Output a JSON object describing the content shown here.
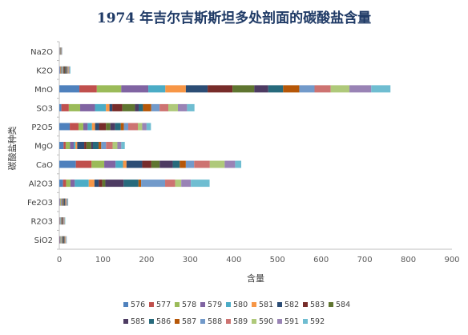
{
  "chart_data": {
    "type": "bar",
    "orientation": "horizontal",
    "stacked": true,
    "title": "1974 年吉尔吉斯斯坦多处剖面的碳酸盐含量",
    "xlabel": "含量",
    "ylabel": "碳酸盐种类",
    "xlim": [
      0,
      900
    ],
    "xticks": [
      "0",
      "100",
      "200",
      "300",
      "400",
      "500",
      "600",
      "700",
      "800",
      "900"
    ],
    "grid": false,
    "legend_position": "bottom",
    "categories": [
      "Na2O",
      "K2O",
      "MnO",
      "SO3",
      "P2O5",
      "MgO",
      "CaO",
      "Al2O3",
      "Fe2O3",
      "R2O3",
      "SiO2"
    ],
    "series": [
      {
        "name": "576",
        "color": "#4f81bd",
        "values": [
          0.4,
          1.5,
          46,
          4.8,
          24,
          9.8,
          38,
          8.5,
          1.2,
          0.8,
          1.0
        ]
      },
      {
        "name": "577",
        "color": "#c0504d",
        "values": [
          0.4,
          1.5,
          40,
          17,
          20,
          4.8,
          36,
          7,
          1.2,
          0.8,
          1.0
        ]
      },
      {
        "name": "578",
        "color": "#9bbb59",
        "values": [
          0.4,
          1.5,
          56,
          26,
          11,
          10,
          29,
          10,
          1.2,
          0.8,
          1.0
        ]
      },
      {
        "name": "579",
        "color": "#8064a2",
        "values": [
          0.4,
          1.5,
          62,
          34,
          10,
          8.5,
          26,
          10,
          1.2,
          0.8,
          1.0
        ]
      },
      {
        "name": "580",
        "color": "#4bacc6",
        "values": [
          0.4,
          1.5,
          39,
          25,
          10,
          4,
          17,
          32,
          1.2,
          0.8,
          1.0
        ]
      },
      {
        "name": "581",
        "color": "#f79646",
        "values": [
          0.4,
          1.5,
          47,
          8.2,
          7,
          4,
          8,
          13,
          1.2,
          0.8,
          1.0
        ]
      },
      {
        "name": "582",
        "color": "#2c4d75",
        "values": [
          0.4,
          1.5,
          50,
          6.4,
          9,
          16,
          36,
          10,
          1.2,
          0.8,
          1.0
        ]
      },
      {
        "name": "583",
        "color": "#772c2a",
        "values": [
          0.4,
          1.5,
          57,
          23,
          16,
          5,
          21,
          8,
          1.2,
          0.8,
          1.0
        ]
      },
      {
        "name": "584",
        "color": "#5f7530",
        "values": [
          0.4,
          1.5,
          50,
          29,
          10,
          11,
          19,
          7,
          1.2,
          0.8,
          1.0
        ]
      },
      {
        "name": "585",
        "color": "#4d3b62",
        "values": [
          0.4,
          1.5,
          32,
          8.4,
          11,
          4,
          30,
          42,
          1.2,
          0.8,
          1.0
        ]
      },
      {
        "name": "586",
        "color": "#276a7c",
        "values": [
          0.4,
          1.5,
          34,
          10,
          13,
          13,
          16,
          34,
          1.2,
          0.8,
          1.0
        ]
      },
      {
        "name": "587",
        "color": "#b65708",
        "values": [
          0.4,
          1.5,
          37,
          19,
          7,
          6,
          14,
          6,
          1.2,
          0.8,
          1.0
        ]
      },
      {
        "name": "588",
        "color": "#729aca",
        "values": [
          0.4,
          1.5,
          35,
          19,
          10,
          11,
          19,
          55,
          1.2,
          0.8,
          1.0
        ]
      },
      {
        "name": "589",
        "color": "#cd7371",
        "values": [
          0.4,
          1.5,
          37,
          20,
          22,
          15,
          36,
          23,
          1.2,
          0.8,
          1.0
        ]
      },
      {
        "name": "590",
        "color": "#afc97a",
        "values": [
          0.4,
          1.5,
          43,
          22,
          10,
          11,
          34,
          14,
          1.2,
          0.8,
          1.0
        ]
      },
      {
        "name": "591",
        "color": "#9983b5",
        "values": [
          0.4,
          1.5,
          50,
          21,
          10,
          9,
          24,
          22,
          1.2,
          0.8,
          1.0
        ]
      },
      {
        "name": "592",
        "color": "#6fbdd1",
        "values": [
          0.4,
          1.5,
          44,
          17,
          10,
          8,
          14,
          43,
          1.2,
          0.8,
          1.0
        ]
      }
    ]
  }
}
